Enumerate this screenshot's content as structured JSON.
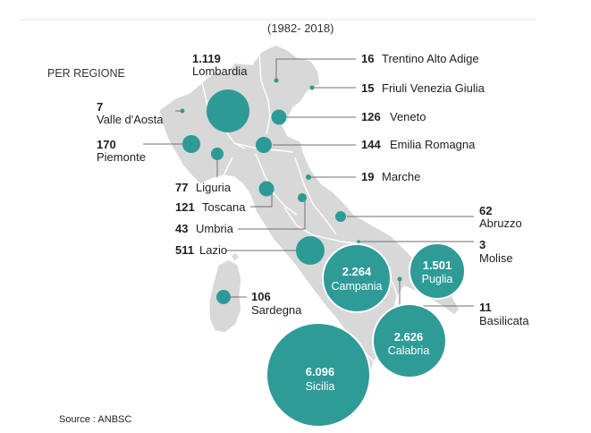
{
  "title": "(1982- 2018)",
  "subtitle": "PER REGIONE",
  "source": "Source : ANBSC",
  "colors": {
    "bubble": "#2d9a96",
    "land": "#d8d8d8",
    "leader": "#6f6f6f"
  },
  "regions": [
    {
      "value": "1.119",
      "name": "Lombardia"
    },
    {
      "value": "7",
      "name": "Valle d'Aosta"
    },
    {
      "value": "170",
      "name": "Piemonte"
    },
    {
      "value": "77",
      "name": "Liguria"
    },
    {
      "value": "121",
      "name": "Toscana"
    },
    {
      "value": "43",
      "name": "Umbria"
    },
    {
      "value": "511",
      "name": "Lazio"
    },
    {
      "value": "106",
      "name": "Sardegna"
    },
    {
      "value": "16",
      "name": "Trentino Alto Adige"
    },
    {
      "value": "15",
      "name": "Friuli Venezia Giulia"
    },
    {
      "value": "126",
      "name": "Veneto"
    },
    {
      "value": "144",
      "name": "Emilia Romagna"
    },
    {
      "value": "19",
      "name": "Marche"
    },
    {
      "value": "62",
      "name": "Abruzzo"
    },
    {
      "value": "3",
      "name": "Molise"
    },
    {
      "value": "11",
      "name": "Basilicata"
    },
    {
      "value": "2.264",
      "name": "Campania"
    },
    {
      "value": "1.501",
      "name": "Puglia"
    },
    {
      "value": "2.626",
      "name": "Calabria"
    },
    {
      "value": "6.096",
      "name": "Sicilia"
    }
  ]
}
